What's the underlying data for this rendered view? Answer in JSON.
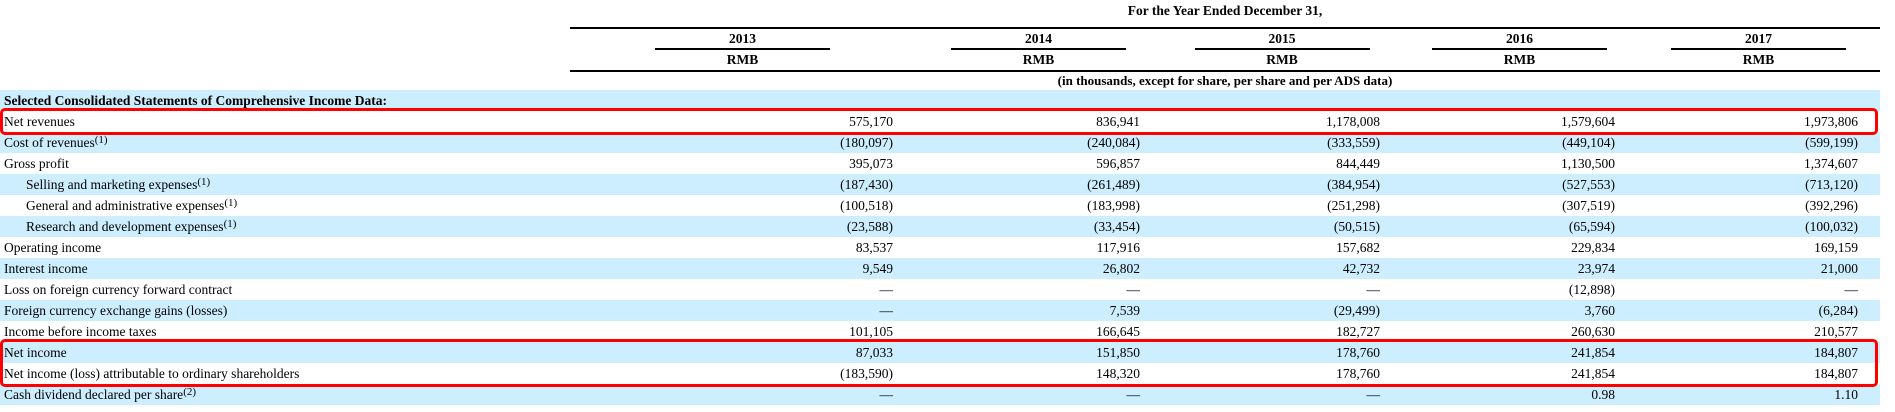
{
  "table": {
    "header": {
      "title": "For the Year Ended December 31,",
      "years": [
        "2013",
        "2014",
        "2015",
        "2016",
        "2017"
      ],
      "currency": "RMB",
      "units_note": "(in thousands, except for share, per share and per ADS data)"
    },
    "section_header": "Selected Consolidated Statements of Comprehensive Income Data:",
    "rows": [
      {
        "label": "Net revenues",
        "footnote": "",
        "indent": false,
        "values": [
          "575,170",
          "836,941",
          "1,178,008",
          "1,579,604",
          "1,973,806"
        ]
      },
      {
        "label": "Cost of revenues",
        "footnote": "(1)",
        "indent": false,
        "values": [
          "(180,097)",
          "(240,084)",
          "(333,559)",
          "(449,104)",
          "(599,199)"
        ]
      },
      {
        "label": "Gross profit",
        "footnote": "",
        "indent": false,
        "values": [
          "395,073",
          "596,857",
          "844,449",
          "1,130,500",
          "1,374,607"
        ]
      },
      {
        "label": "Selling and marketing expenses",
        "footnote": "(1)",
        "indent": true,
        "values": [
          "(187,430)",
          "(261,489)",
          "(384,954)",
          "(527,553)",
          "(713,120)"
        ]
      },
      {
        "label": "General and administrative expenses",
        "footnote": "(1)",
        "indent": true,
        "values": [
          "(100,518)",
          "(183,998)",
          "(251,298)",
          "(307,519)",
          "(392,296)"
        ]
      },
      {
        "label": "Research and development expenses",
        "footnote": "(1)",
        "indent": true,
        "values": [
          "(23,588)",
          "(33,454)",
          "(50,515)",
          "(65,594)",
          "(100,032)"
        ]
      },
      {
        "label": "Operating income",
        "footnote": "",
        "indent": false,
        "values": [
          "83,537",
          "117,916",
          "157,682",
          "229,834",
          "169,159"
        ]
      },
      {
        "label": "Interest income",
        "footnote": "",
        "indent": false,
        "values": [
          "9,549",
          "26,802",
          "42,732",
          "23,974",
          "21,000"
        ]
      },
      {
        "label": "Loss on foreign currency forward contract",
        "footnote": "",
        "indent": false,
        "values": [
          "—",
          "—",
          "—",
          "(12,898)",
          "—"
        ]
      },
      {
        "label": "Foreign currency exchange gains (losses)",
        "footnote": "",
        "indent": false,
        "values": [
          "—",
          "7,539",
          "(29,499)",
          "3,760",
          "(6,284)"
        ]
      },
      {
        "label": "Income before income taxes",
        "footnote": "",
        "indent": false,
        "values": [
          "101,105",
          "166,645",
          "182,727",
          "260,630",
          "210,577"
        ]
      },
      {
        "label": "Net income",
        "footnote": "",
        "indent": false,
        "values": [
          "87,033",
          "151,850",
          "178,760",
          "241,854",
          "184,807"
        ]
      },
      {
        "label": "Net income (loss) attributable to ordinary shareholders",
        "footnote": "",
        "indent": false,
        "values": [
          "(183,590)",
          "148,320",
          "178,760",
          "241,854",
          "184,807"
        ]
      },
      {
        "label": "Cash dividend declared per share",
        "footnote": "(2)",
        "indent": false,
        "values": [
          "—",
          "—",
          "—",
          "0.98",
          "1.10"
        ]
      }
    ]
  },
  "annotations": {
    "red_boxes": [
      {
        "first_row": 0,
        "last_row": 0
      },
      {
        "first_row": 11,
        "last_row": 12
      }
    ]
  },
  "colors": {
    "row_stripe": "#cceeff",
    "highlight_box": "#ff0000",
    "rule": "#000000"
  }
}
